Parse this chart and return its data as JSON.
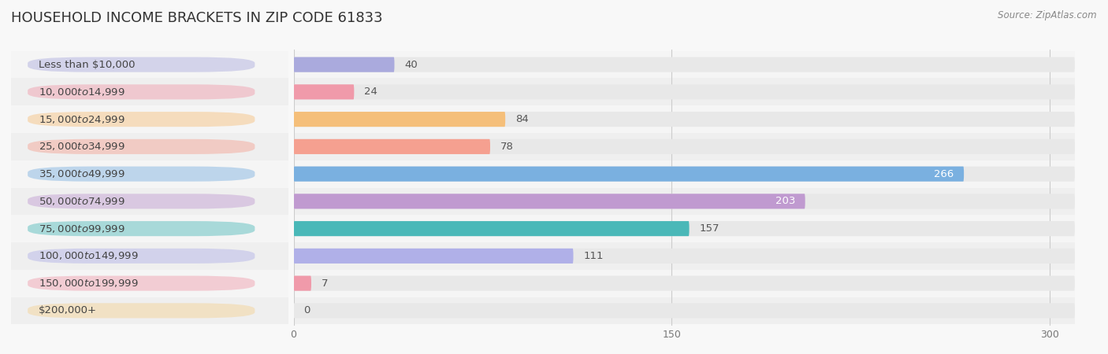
{
  "title": "HOUSEHOLD INCOME BRACKETS IN ZIP CODE 61833",
  "source": "Source: ZipAtlas.com",
  "categories": [
    "Less than $10,000",
    "$10,000 to $14,999",
    "$15,000 to $24,999",
    "$25,000 to $34,999",
    "$35,000 to $49,999",
    "$50,000 to $74,999",
    "$75,000 to $99,999",
    "$100,000 to $149,999",
    "$150,000 to $199,999",
    "$200,000+"
  ],
  "values": [
    40,
    24,
    84,
    78,
    266,
    203,
    157,
    111,
    7,
    0
  ],
  "bar_colors": [
    "#aaaadd",
    "#f09aaa",
    "#f5bf7a",
    "#f5a090",
    "#7ab0e0",
    "#c09ad0",
    "#4ab8b8",
    "#b0b0e8",
    "#f09aaa",
    "#f5d090"
  ],
  "label_pill_colors": [
    "#aaaadd",
    "#f09aaa",
    "#f5bf7a",
    "#f5a090",
    "#7ab0e0",
    "#c09ad0",
    "#4ab8b8",
    "#b0b0e8",
    "#f09aaa",
    "#f5d090"
  ],
  "xlim": [
    0,
    310
  ],
  "xticks": [
    0,
    150,
    300
  ],
  "background_color": "#f0f0f0",
  "bar_bg_color": "#e8e8e8",
  "row_bg_colors": [
    "#f8f8f8",
    "#efefef"
  ],
  "title_fontsize": 13,
  "label_fontsize": 9.5,
  "value_fontsize": 9.5,
  "bar_height": 0.55,
  "n_rows": 10
}
